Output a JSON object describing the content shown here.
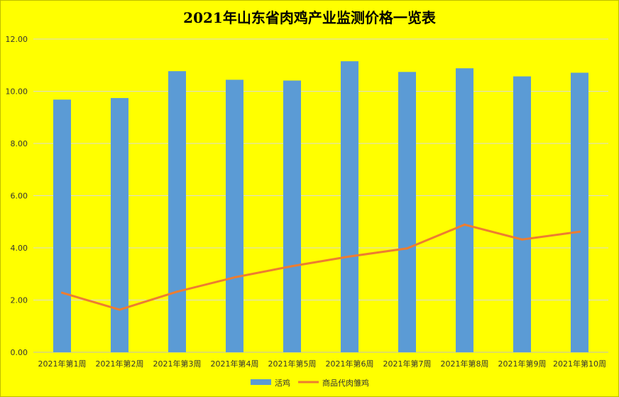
{
  "chart_data": {
    "type": "bar",
    "title": "2021年山东省肉鸡产业监测价格一览表",
    "categories": [
      "2021年第1周",
      "2021年第2周",
      "2021年第3周",
      "2021年第4周",
      "2021年第5周",
      "2021年第6周",
      "2021年第7周",
      "2021年第8周",
      "2021年第9周",
      "2021年第10周"
    ],
    "series": [
      {
        "name": "活鸡",
        "type": "bar",
        "color": "#5b9bd5",
        "values": [
          9.68,
          9.74,
          10.77,
          10.44,
          10.41,
          11.15,
          10.74,
          10.88,
          10.57,
          10.71
        ]
      },
      {
        "name": "商品代肉雏鸡",
        "type": "line",
        "color": "#ed7d31",
        "values": [
          2.28,
          1.63,
          2.32,
          2.87,
          3.3,
          3.67,
          3.98,
          4.89,
          4.32,
          4.62
        ]
      }
    ],
    "ylim": [
      0,
      12
    ],
    "yticks": [
      "0.00",
      "2.00",
      "4.00",
      "6.00",
      "8.00",
      "10.00",
      "12.00"
    ],
    "grid": true,
    "legend": "bottom"
  }
}
